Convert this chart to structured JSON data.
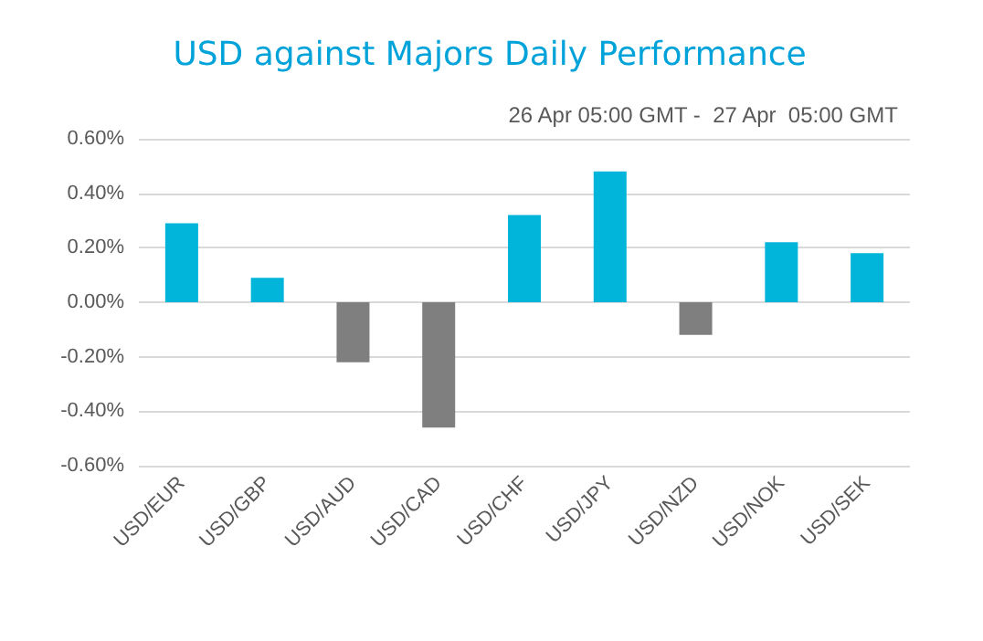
{
  "chart_data": {
    "type": "bar",
    "title": "USD against Majors Daily Performance",
    "subtitle": "26 Apr 05:00 GMT -  27 Apr  05:00 GMT",
    "categories": [
      "USD/EUR",
      "USD/GBP",
      "USD/AUD",
      "USD/CAD",
      "USD/CHF",
      "USD/JPY",
      "USD/NZD",
      "USD/NOK",
      "USD/SEK"
    ],
    "values": [
      0.29,
      0.09,
      -0.22,
      -0.46,
      0.32,
      0.48,
      -0.12,
      0.22,
      0.18
    ],
    "colors": [
      "#00b4da",
      "#00b4da",
      "#7f7f7f",
      "#7f7f7f",
      "#00b4da",
      "#00b4da",
      "#7f7f7f",
      "#00b4da",
      "#00b4da"
    ],
    "ylim": [
      -0.6,
      0.6
    ],
    "yticks": [
      {
        "value": -0.6,
        "label": "-0.60%"
      },
      {
        "value": -0.4,
        "label": "-0.40%"
      },
      {
        "value": -0.2,
        "label": "-0.20%"
      },
      {
        "value": 0,
        "label": "0.00%"
      },
      {
        "value": 0.2,
        "label": "0.20%"
      },
      {
        "value": 0.4,
        "label": "0.40%"
      },
      {
        "value": 0.6,
        "label": "0.60%"
      }
    ],
    "grid": "y"
  }
}
